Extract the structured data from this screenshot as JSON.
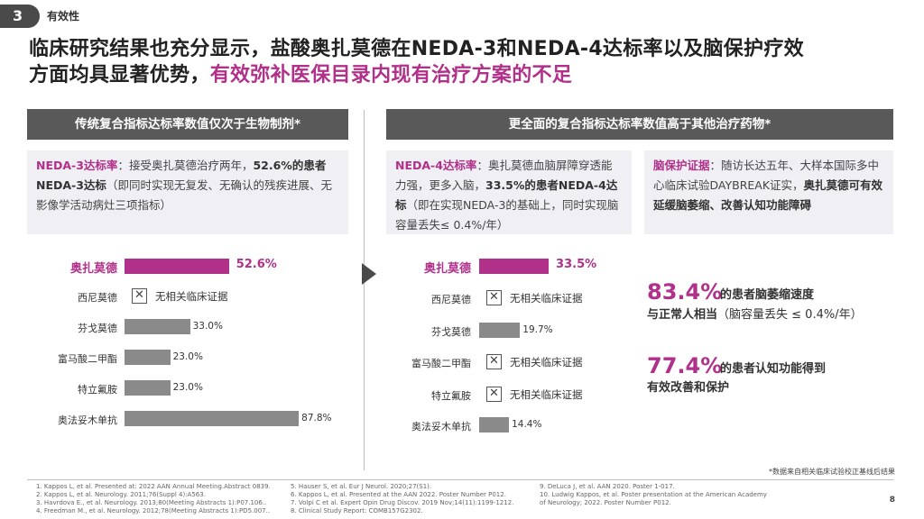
{
  "section": {
    "number": "3",
    "title": "有效性"
  },
  "headline": {
    "line1": "临床研究结果也充分显示，盐酸奥扎莫德在NEDA-3和NEDA-4达标率以及脑保护疗效",
    "line2_plain": "方面均具显著优势，",
    "line2_accent": "有效弥补医保目录内现有治疗方案的不足"
  },
  "left_panel": {
    "header": "传统复合指标达标率数值仅次于生物制剂*",
    "info": {
      "p1": "NEDA-3达标率",
      "p2": "：接受奥扎莫德治疗两年，",
      "p3": "52.6%的患者NEDA-3达标",
      "p4": "（即同时实现无复发、无确认的",
      "p5": "残疾进展、无影像学活动病灶三项指标）"
    }
  },
  "right_panel": {
    "header": "更全面的复合指标达标率数值高于其他治疗药物*",
    "info1": {
      "p1": "NEDA-4达标率",
      "p2": "：奥扎莫德血脑屏障穿透能力强，更多入脑，",
      "p3": "33.5%的患者NEDA-4达标",
      "p4": "（即在实现NEDA-3的基础上，同时实现脑容量丢失≤ 0.4%/年）"
    },
    "info2": {
      "p1": "脑保护证据",
      "p2": "：随访长达五年、大样本国际多中心临床试验DAYBREAK证实，",
      "p3": "奥扎莫德可有效延缓脑萎缩、改善认知功能障碍"
    }
  },
  "no_data_label": "无相关临床证据",
  "chart_data": [
    {
      "type": "bar",
      "orientation": "horizontal",
      "categories": [
        "奥扎莫德",
        "西尼莫德",
        "芬戈莫德",
        "富马酸二甲酯",
        "特立氟胺",
        "奥法妥木单抗"
      ],
      "values": [
        52.6,
        null,
        33.0,
        23.0,
        23.0,
        87.8
      ],
      "labels": [
        "52.6%",
        "",
        "33.0%",
        "23.0%",
        "23.0%",
        "87.8%"
      ],
      "highlight": "奥扎莫德",
      "xlim": [
        0,
        100
      ]
    },
    {
      "type": "bar",
      "orientation": "horizontal",
      "categories": [
        "奥扎莫德",
        "西尼莫德",
        "芬戈莫德",
        "富马酸二甲酯",
        "特立氟胺",
        "奥法妥木单抗"
      ],
      "values": [
        33.5,
        null,
        19.7,
        null,
        null,
        14.4
      ],
      "labels": [
        "33.5%",
        "",
        "19.7%",
        "",
        "",
        "14.4%"
      ],
      "highlight": "奥扎莫德",
      "xlim": [
        0,
        100
      ]
    }
  ],
  "stats": [
    {
      "value": "83.4%",
      "text1": " 的患者脑萎缩速度",
      "text2_bold": "与正常人相当",
      "text2": "（脑容量丢失 ≤ 0.4%/年）"
    },
    {
      "value": "77.4%",
      "text1": " 的患者认知功能得到",
      "text2_bold": "有效改善和保护",
      "text2": ""
    }
  ],
  "footnote": "*数据来自相关临床试验校正基线后结果",
  "refs": {
    "col1": [
      "1.  Kappos L, et al. Presented at: 2022 AAN Annual Meeting.Abstract 0839.",
      "2.  Kappos L, et al. Neurology. 2011;76(Suppl 4):A563.",
      "3.  Havrdova E., et al. Neurology. 2013;80(Meeting Abstracts 1):P07.106..",
      "4.  Freedman M., et al. Neurology. 2012;78(Meeting Abstracts 1):PD5.007.."
    ],
    "col2": [
      "5.     Hauser S, et al. Eur J Neurol. 2020;27(S1).",
      "6.     Kappos L, et al. Presented at the AAN 2022. Poster Number P012.",
      "7.     Volpi C et al. Expert Opin Drug Discov. 2019 Nov;14(11):1199-1212.",
      "8.     Clinical Study Report: COMB157G2302."
    ],
    "col3": [
      "9.     DeLuca J, et al. AAN 2020. Poster 1-017.",
      "10.   Ludwig Kappos, et al. Poster presentation at the American Academy",
      "        of Neurology; 2022. Poster Number P012."
    ]
  },
  "page_number": "8",
  "colors": {
    "accent": "#b0308a",
    "bar": "#8a8a8a",
    "header": "#595959",
    "infobox": "#f0eff3"
  }
}
